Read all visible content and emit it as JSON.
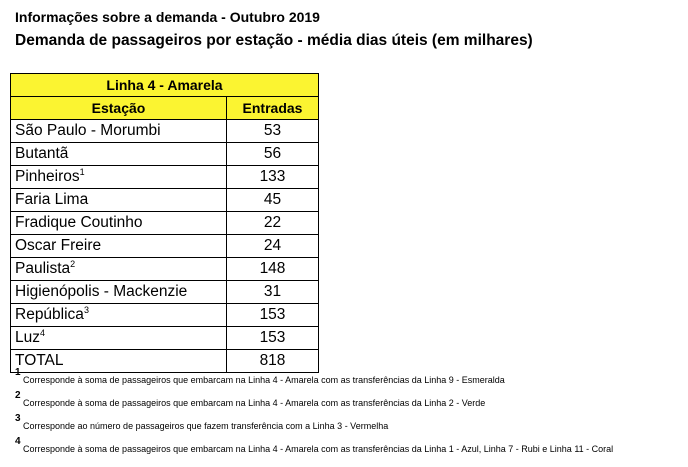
{
  "header": {
    "line1": "Informações sobre a demanda - Outubro 2019",
    "line2": "Demanda de passageiros por estação - média dias úteis (em milhares)"
  },
  "table": {
    "title": "Linha 4 - Amarela",
    "columns": [
      "Estação",
      "Entradas"
    ],
    "rows": [
      {
        "station": "São Paulo - Morumbi",
        "sup": "",
        "value": "53"
      },
      {
        "station": "Butantã",
        "sup": "",
        "value": "56"
      },
      {
        "station": "Pinheiros",
        "sup": "1",
        "value": "133"
      },
      {
        "station": "Faria Lima",
        "sup": "",
        "value": "45"
      },
      {
        "station": "Fradique Coutinho",
        "sup": "",
        "value": "22"
      },
      {
        "station": "Oscar Freire",
        "sup": "",
        "value": "24"
      },
      {
        "station": "Paulista",
        "sup": "2",
        "value": "148"
      },
      {
        "station": "Higienópolis - Mackenzie",
        "sup": "",
        "value": "31"
      },
      {
        "station": "República",
        "sup": "3",
        "value": "153"
      },
      {
        "station": "Luz",
        "sup": "4",
        "value": "153"
      }
    ],
    "total": {
      "label": "TOTAL",
      "value": "818"
    }
  },
  "footnotes": [
    {
      "marker": "1",
      "text": "Corresponde à soma de passageiros que embarcam na Linha 4 - Amarela com as transferências da Linha 9 - Esmeralda"
    },
    {
      "marker": "2",
      "text": "Corresponde à soma de passageiros que embarcam na Linha 4 - Amarela com as transferências da Linha 2 - Verde"
    },
    {
      "marker": "3",
      "text": "Corresponde ao número de passageiros que fazem transferência com a Linha 3 - Vermelha"
    },
    {
      "marker": "4",
      "text": "Corresponde à soma de passageiros que embarcam na Linha 4 - Amarela com as transferências da Linha 1 - Azul, Linha 7 - Rubi e Linha 11 - Coral"
    }
  ],
  "colors": {
    "header_fill": "#fbf431",
    "border": "#000000",
    "text": "#000000"
  }
}
